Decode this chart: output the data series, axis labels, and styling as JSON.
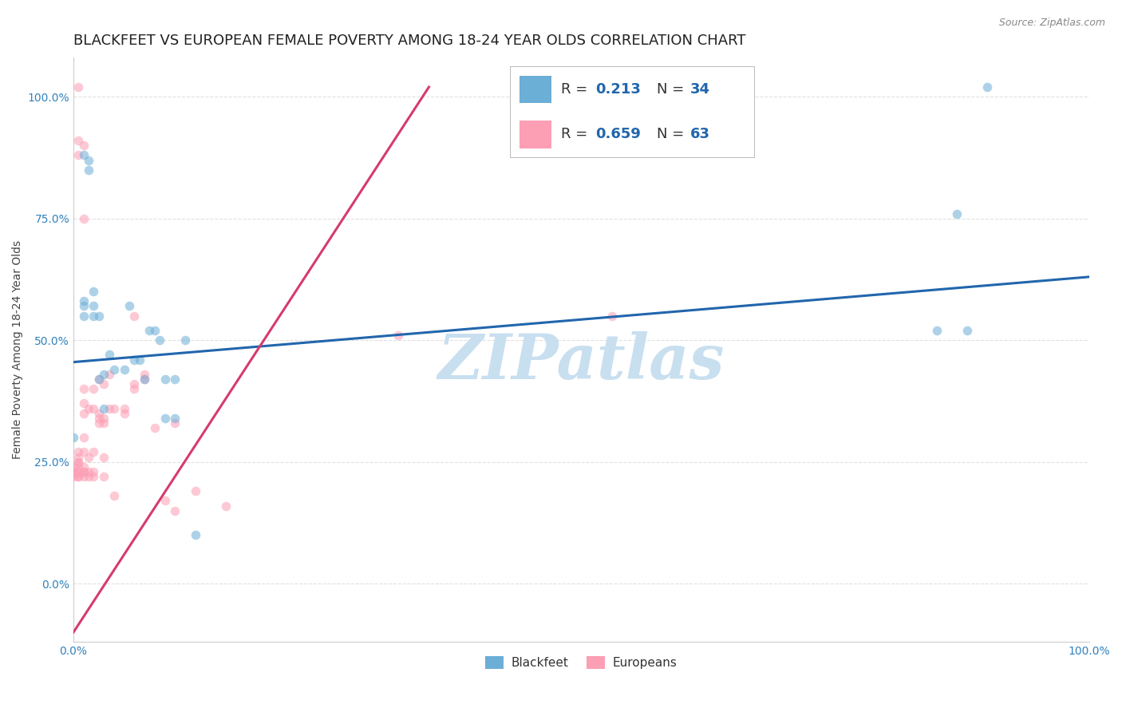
{
  "title": "BLACKFEET VS EUROPEAN FEMALE POVERTY AMONG 18-24 YEAR OLDS CORRELATION CHART",
  "source": "Source: ZipAtlas.com",
  "xlabel": "",
  "ylabel": "Female Poverty Among 18-24 Year Olds",
  "xlim": [
    0.0,
    1.0
  ],
  "ylim": [
    -0.12,
    1.08
  ],
  "x_ticks": [
    0.0,
    0.1,
    0.2,
    0.3,
    0.4,
    0.5,
    0.6,
    0.7,
    0.8,
    0.9,
    1.0
  ],
  "x_tick_labels": [
    "0.0%",
    "",
    "",
    "",
    "",
    "",
    "",
    "",
    "",
    "",
    "100.0%"
  ],
  "y_ticks": [
    0.0,
    0.25,
    0.5,
    0.75,
    1.0
  ],
  "y_tick_labels": [
    "0.0%",
    "25.0%",
    "50.0%",
    "75.0%",
    "100.0%"
  ],
  "blackfeet_color": "#6baed6",
  "europeans_color": "#fc9eb4",
  "blackfeet_line_color": "#2166ac",
  "europeans_line_color": "#d63b6e",
  "blackfeet_R": 0.213,
  "blackfeet_N": 34,
  "europeans_R": 0.659,
  "europeans_N": 63,
  "blackfeet_x": [
    0.0,
    0.01,
    0.01,
    0.01,
    0.01,
    0.015,
    0.015,
    0.02,
    0.02,
    0.02,
    0.025,
    0.025,
    0.03,
    0.03,
    0.035,
    0.04,
    0.05,
    0.055,
    0.06,
    0.065,
    0.07,
    0.075,
    0.08,
    0.085,
    0.09,
    0.09,
    0.1,
    0.1,
    0.11,
    0.12,
    0.85,
    0.87,
    0.88,
    0.9
  ],
  "blackfeet_y": [
    0.3,
    0.55,
    0.57,
    0.58,
    0.88,
    0.85,
    0.87,
    0.55,
    0.57,
    0.6,
    0.42,
    0.55,
    0.36,
    0.43,
    0.47,
    0.44,
    0.44,
    0.57,
    0.46,
    0.46,
    0.42,
    0.52,
    0.52,
    0.5,
    0.34,
    0.42,
    0.34,
    0.42,
    0.5,
    0.1,
    0.52,
    0.76,
    0.52,
    1.02
  ],
  "europeans_x": [
    0.0,
    0.0,
    0.0,
    0.005,
    0.005,
    0.005,
    0.005,
    0.005,
    0.005,
    0.005,
    0.005,
    0.005,
    0.005,
    0.005,
    0.005,
    0.01,
    0.01,
    0.01,
    0.01,
    0.01,
    0.01,
    0.01,
    0.01,
    0.01,
    0.01,
    0.01,
    0.015,
    0.015,
    0.015,
    0.015,
    0.02,
    0.02,
    0.02,
    0.02,
    0.02,
    0.025,
    0.025,
    0.025,
    0.025,
    0.03,
    0.03,
    0.03,
    0.03,
    0.03,
    0.035,
    0.035,
    0.04,
    0.04,
    0.05,
    0.05,
    0.06,
    0.06,
    0.06,
    0.07,
    0.07,
    0.08,
    0.09,
    0.1,
    0.1,
    0.12,
    0.15,
    0.32,
    0.53
  ],
  "europeans_y": [
    0.22,
    0.23,
    0.24,
    0.22,
    0.22,
    0.23,
    0.23,
    0.24,
    0.25,
    0.25,
    0.26,
    0.27,
    0.88,
    0.91,
    1.02,
    0.22,
    0.23,
    0.23,
    0.27,
    0.3,
    0.35,
    0.37,
    0.4,
    0.75,
    0.9,
    0.24,
    0.22,
    0.23,
    0.26,
    0.36,
    0.22,
    0.23,
    0.27,
    0.36,
    0.4,
    0.33,
    0.34,
    0.35,
    0.42,
    0.22,
    0.26,
    0.33,
    0.34,
    0.41,
    0.36,
    0.43,
    0.18,
    0.36,
    0.35,
    0.36,
    0.4,
    0.41,
    0.55,
    0.42,
    0.43,
    0.32,
    0.17,
    0.15,
    0.33,
    0.19,
    0.16,
    0.51,
    0.55
  ],
  "blue_line_x0": 0.0,
  "blue_line_y0": 0.455,
  "blue_line_x1": 1.0,
  "blue_line_y1": 0.63,
  "pink_line_x0": 0.0,
  "pink_line_y0": -0.1,
  "pink_line_x1": 0.35,
  "pink_line_y1": 1.02,
  "watermark": "ZIPatlas",
  "watermark_color": "#c8dff0",
  "background_color": "#ffffff",
  "grid_color": "#e0e0e0",
  "tick_label_color": "#3182bd",
  "title_fontsize": 13,
  "axis_label_fontsize": 10,
  "tick_fontsize": 10,
  "marker_size": 70,
  "marker_alpha": 0.55,
  "line_width": 2.2,
  "legend_r_n_color": "#2166ac",
  "legend_text_color": "#333333"
}
